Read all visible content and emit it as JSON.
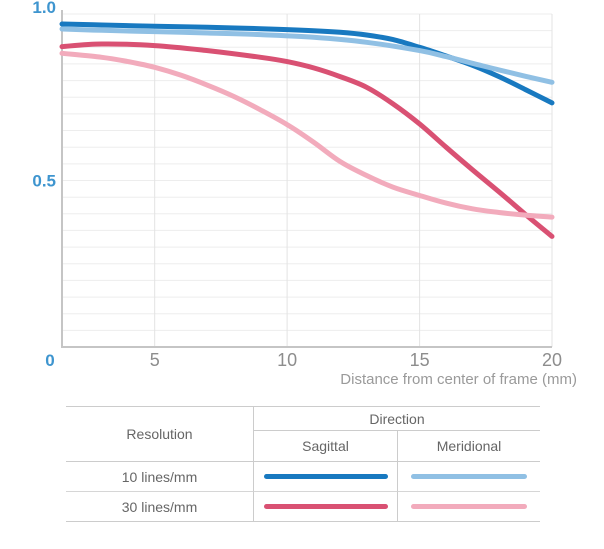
{
  "chart": {
    "axis_title": "Distance from center of frame (mm)",
    "tick_color_accent": "#3E95CF",
    "tick_color_muted": "#8D8D8D",
    "chart_data": {
      "type": "line",
      "title": "",
      "xlabel": "Distance from center of frame (mm)",
      "ylabel": "",
      "xlim": [
        1.5,
        20
      ],
      "ylim": [
        0,
        1
      ],
      "y_minor_step": 0.05,
      "grid": true,
      "legend_position": "bottom-table",
      "origin_label": "0",
      "xticks": [
        {
          "value": 5,
          "label": "5"
        },
        {
          "value": 10,
          "label": "10"
        },
        {
          "value": 15,
          "label": "15"
        },
        {
          "value": 20,
          "label": "20"
        }
      ],
      "yticks": [
        {
          "value": 1.0,
          "label": "1.0"
        },
        {
          "value": 0.5,
          "label": "0.5"
        }
      ],
      "series": [
        {
          "id": "10-sagittal",
          "name": "10 lines/mm Sagittal",
          "color": "#1879C0",
          "x": [
            1.5,
            3,
            5,
            7,
            9,
            11,
            12,
            13,
            14,
            15,
            16,
            17,
            18,
            19,
            20
          ],
          "y": [
            0.97,
            0.967,
            0.963,
            0.96,
            0.956,
            0.95,
            0.945,
            0.937,
            0.923,
            0.9,
            0.874,
            0.846,
            0.812,
            0.773,
            0.733
          ]
        },
        {
          "id": "10-meridional",
          "name": "10 lines/mm Meridional",
          "color": "#90C0E4",
          "x": [
            1.5,
            3,
            5,
            7,
            9,
            11,
            13,
            15,
            16,
            17,
            18,
            19,
            20
          ],
          "y": [
            0.955,
            0.951,
            0.947,
            0.943,
            0.938,
            0.93,
            0.915,
            0.89,
            0.872,
            0.852,
            0.832,
            0.813,
            0.795
          ]
        },
        {
          "id": "30-sagittal",
          "name": "30 lines/mm Sagittal",
          "color": "#D95173",
          "x": [
            1.5,
            3,
            5,
            7,
            9,
            10,
            11,
            12,
            13,
            14,
            15,
            16,
            17,
            18,
            19,
            20
          ],
          "y": [
            0.902,
            0.91,
            0.905,
            0.89,
            0.87,
            0.857,
            0.838,
            0.812,
            0.78,
            0.73,
            0.67,
            0.6,
            0.532,
            0.466,
            0.398,
            0.332
          ]
        },
        {
          "id": "30-meridional",
          "name": "30 lines/mm Meridional",
          "color": "#F2ABBC",
          "x": [
            1.5,
            3,
            4,
            5,
            6,
            7,
            8,
            9,
            10,
            11,
            12,
            13,
            14,
            15,
            16,
            17,
            18,
            19,
            20
          ],
          "y": [
            0.882,
            0.87,
            0.857,
            0.84,
            0.816,
            0.786,
            0.752,
            0.712,
            0.668,
            0.615,
            0.557,
            0.515,
            0.48,
            0.455,
            0.432,
            0.415,
            0.404,
            0.396,
            0.39
          ]
        }
      ]
    }
  },
  "legend": {
    "resolution_header": "Resolution",
    "direction_header": "Direction",
    "sagittal_header": "Sagittal",
    "meridional_header": "Meridional",
    "rows": [
      {
        "resolution": "10 lines/mm"
      },
      {
        "resolution": "30 lines/mm"
      }
    ]
  }
}
